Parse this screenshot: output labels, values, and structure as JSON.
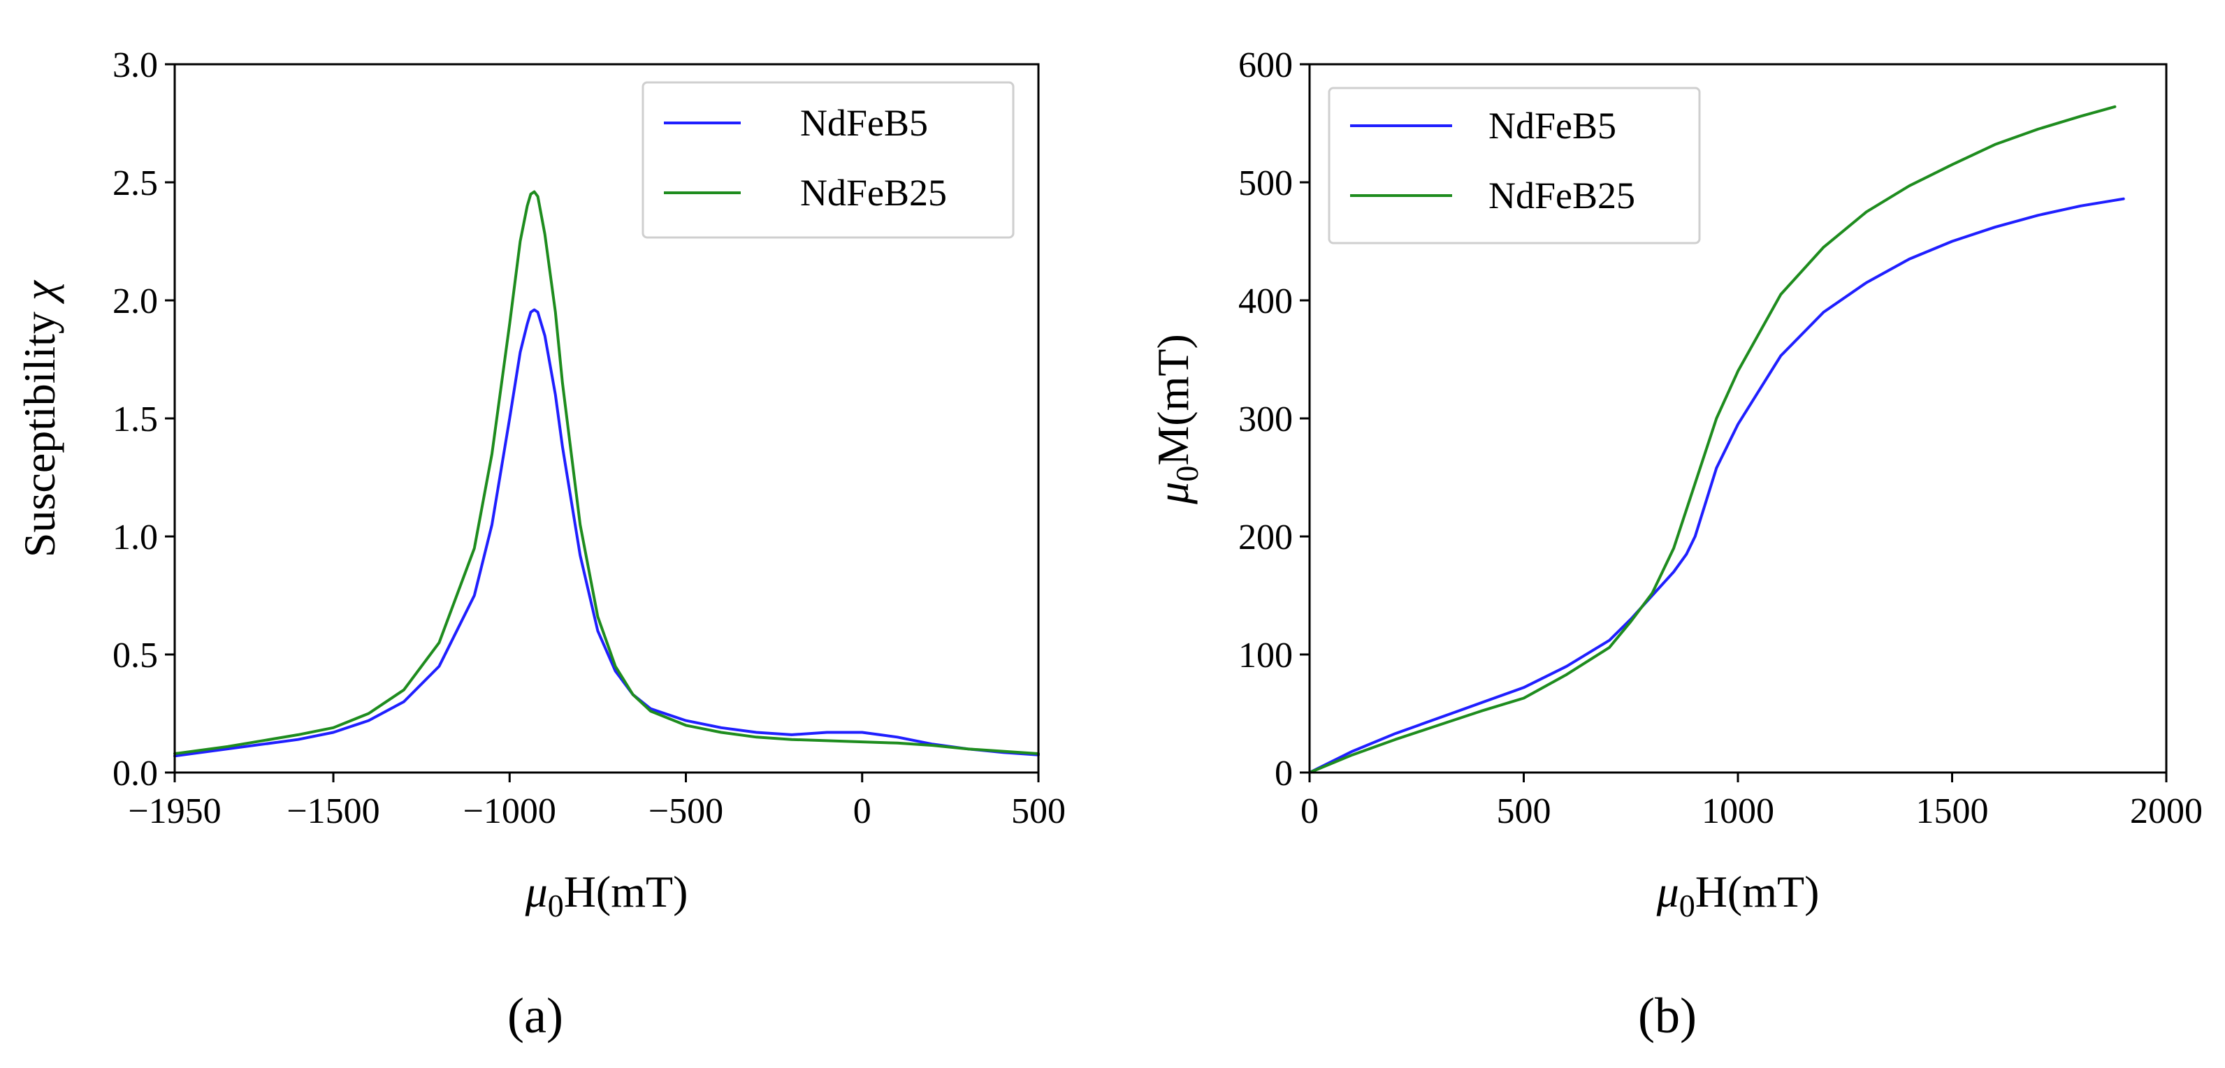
{
  "figure": {
    "captions": [
      "(a)",
      "(b)"
    ]
  },
  "chart_data": [
    {
      "type": "line",
      "panel": "(a)",
      "xlabel": {
        "sym": "μ",
        "sub": "0",
        "rest": "H(mT)"
      },
      "ylabel": {
        "text": "Susceptibility ",
        "sym": "χ"
      },
      "xlim": [
        -1950,
        500
      ],
      "ylim": [
        0,
        3.0
      ],
      "xticks": [
        -1950,
        -1500,
        -1000,
        -500,
        0,
        500
      ],
      "xtick_labels": [
        "−1950",
        "−1500",
        "−1000",
        "−500",
        "0",
        "500"
      ],
      "yticks": [
        0,
        0.5,
        1.0,
        1.5,
        2.0,
        2.5,
        3.0
      ],
      "ytick_labels": [
        "0.0",
        "0.5",
        "1.0",
        "1.5",
        "2.0",
        "2.5",
        "3.0"
      ],
      "legend_position": "top-right",
      "series": [
        {
          "name": "NdFeB5",
          "color": "#1f1fff",
          "x": [
            -1950,
            -1800,
            -1600,
            -1500,
            -1400,
            -1300,
            -1200,
            -1100,
            -1050,
            -1000,
            -970,
            -950,
            -940,
            -930,
            -920,
            -900,
            -870,
            -850,
            -800,
            -750,
            -700,
            -650,
            -600,
            -500,
            -400,
            -300,
            -200,
            -100,
            0,
            50,
            100,
            200,
            300,
            400,
            500
          ],
          "y": [
            0.07,
            0.1,
            0.14,
            0.17,
            0.22,
            0.3,
            0.45,
            0.75,
            1.05,
            1.5,
            1.78,
            1.9,
            1.95,
            1.96,
            1.95,
            1.85,
            1.6,
            1.38,
            0.92,
            0.6,
            0.43,
            0.33,
            0.27,
            0.22,
            0.19,
            0.17,
            0.16,
            0.17,
            0.17,
            0.16,
            0.15,
            0.12,
            0.1,
            0.085,
            0.075
          ]
        },
        {
          "name": "NdFeB25",
          "color": "#1e8c1e",
          "x": [
            -1950,
            -1800,
            -1600,
            -1500,
            -1400,
            -1300,
            -1200,
            -1100,
            -1050,
            -1000,
            -970,
            -950,
            -940,
            -930,
            -920,
            -900,
            -870,
            -850,
            -800,
            -750,
            -700,
            -650,
            -600,
            -500,
            -400,
            -300,
            -200,
            -100,
            0,
            100,
            200,
            300,
            400,
            500
          ],
          "y": [
            0.08,
            0.11,
            0.16,
            0.19,
            0.25,
            0.35,
            0.55,
            0.95,
            1.35,
            1.9,
            2.25,
            2.4,
            2.45,
            2.46,
            2.44,
            2.28,
            1.95,
            1.65,
            1.05,
            0.66,
            0.45,
            0.33,
            0.26,
            0.2,
            0.17,
            0.15,
            0.14,
            0.135,
            0.13,
            0.125,
            0.115,
            0.1,
            0.09,
            0.08
          ]
        }
      ]
    },
    {
      "type": "line",
      "panel": "(b)",
      "xlabel": {
        "sym": "μ",
        "sub": "0",
        "rest": "H(mT)"
      },
      "ylabel": {
        "sym": "μ",
        "sub": "0",
        "rest": "M(mT)"
      },
      "xlim": [
        0,
        2000
      ],
      "ylim": [
        0,
        600
      ],
      "xticks": [
        0,
        500,
        1000,
        1500,
        2000
      ],
      "xtick_labels": [
        "0",
        "500",
        "1000",
        "1500",
        "2000"
      ],
      "yticks": [
        0,
        100,
        200,
        300,
        400,
        500,
        600
      ],
      "ytick_labels": [
        "0",
        "100",
        "200",
        "300",
        "400",
        "500",
        "600"
      ],
      "legend_position": "top-left",
      "series": [
        {
          "name": "NdFeB5",
          "color": "#1f1fff",
          "x": [
            0,
            100,
            200,
            300,
            400,
            500,
            600,
            700,
            750,
            800,
            850,
            880,
            900,
            950,
            1000,
            1100,
            1200,
            1300,
            1400,
            1500,
            1600,
            1700,
            1800,
            1900
          ],
          "y": [
            0,
            18,
            33,
            46,
            59,
            72,
            90,
            112,
            130,
            150,
            170,
            185,
            200,
            258,
            295,
            353,
            390,
            415,
            435,
            450,
            462,
            472,
            480,
            486
          ]
        },
        {
          "name": "NdFeB25",
          "color": "#1e8c1e",
          "x": [
            0,
            100,
            200,
            300,
            400,
            500,
            600,
            700,
            750,
            800,
            850,
            900,
            950,
            1000,
            1100,
            1200,
            1300,
            1400,
            1500,
            1600,
            1700,
            1800,
            1880
          ],
          "y": [
            0,
            15,
            28,
            40,
            52,
            63,
            83,
            106,
            128,
            152,
            190,
            245,
            300,
            340,
            405,
            445,
            475,
            497,
            515,
            532,
            545,
            556,
            564
          ]
        }
      ]
    }
  ]
}
